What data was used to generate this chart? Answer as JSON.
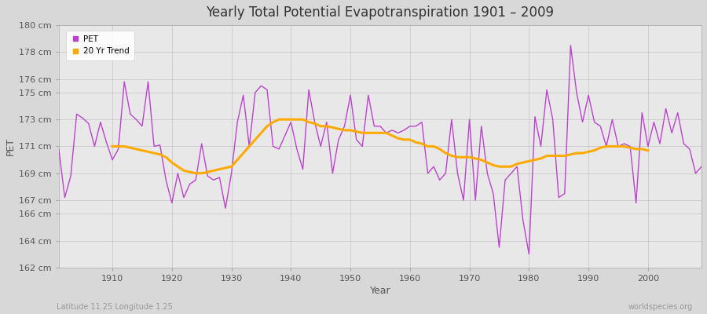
{
  "title": "Yearly Total Potential Evapotranspiration 1901 – 2009",
  "xlabel": "Year",
  "ylabel": "PET",
  "subtitle": "Latitude 11.25 Longitude 1.25",
  "watermark": "worldspecies.org",
  "pet_color": "#bb44cc",
  "trend_color": "#ffaa00",
  "fig_bg_color": "#d8d8d8",
  "plot_bg_color": "#e8e8e8",
  "ylim": [
    162,
    180
  ],
  "yticks": [
    162,
    164,
    166,
    167,
    169,
    171,
    173,
    175,
    176,
    178,
    180
  ],
  "xlim": [
    1901,
    2009
  ],
  "xticks": [
    1910,
    1920,
    1930,
    1940,
    1950,
    1960,
    1970,
    1980,
    1990,
    2000
  ],
  "years": [
    1901,
    1902,
    1903,
    1904,
    1905,
    1906,
    1907,
    1908,
    1909,
    1910,
    1911,
    1912,
    1913,
    1914,
    1915,
    1916,
    1917,
    1918,
    1919,
    1920,
    1921,
    1922,
    1923,
    1924,
    1925,
    1926,
    1927,
    1928,
    1929,
    1930,
    1931,
    1932,
    1933,
    1934,
    1935,
    1936,
    1937,
    1938,
    1939,
    1940,
    1941,
    1942,
    1943,
    1944,
    1945,
    1946,
    1947,
    1948,
    1949,
    1950,
    1951,
    1952,
    1953,
    1954,
    1955,
    1956,
    1957,
    1958,
    1959,
    1960,
    1961,
    1962,
    1963,
    1964,
    1965,
    1966,
    1967,
    1968,
    1969,
    1970,
    1971,
    1972,
    1973,
    1974,
    1975,
    1976,
    1977,
    1978,
    1979,
    1980,
    1981,
    1982,
    1983,
    1984,
    1985,
    1986,
    1987,
    1988,
    1989,
    1990,
    1991,
    1992,
    1993,
    1994,
    1995,
    1996,
    1997,
    1998,
    1999,
    2000,
    2001,
    2002,
    2003,
    2004,
    2005,
    2006,
    2007,
    2008,
    2009
  ],
  "pet_values": [
    170.8,
    167.2,
    168.8,
    173.4,
    173.1,
    172.7,
    171.0,
    172.8,
    171.3,
    170.0,
    170.8,
    175.8,
    173.4,
    173.0,
    172.5,
    175.8,
    171.0,
    171.1,
    168.5,
    166.8,
    169.0,
    167.2,
    168.2,
    168.5,
    171.2,
    168.8,
    168.5,
    168.7,
    166.4,
    169.0,
    172.8,
    174.8,
    171.0,
    175.0,
    175.5,
    175.2,
    171.0,
    170.8,
    171.8,
    172.8,
    170.8,
    169.3,
    175.2,
    172.8,
    171.0,
    172.8,
    169.0,
    171.5,
    172.5,
    174.8,
    171.5,
    171.0,
    174.8,
    172.5,
    172.5,
    172.0,
    172.2,
    172.0,
    172.2,
    172.5,
    172.5,
    172.8,
    169.0,
    169.5,
    168.5,
    169.0,
    173.0,
    169.0,
    167.0,
    173.0,
    167.0,
    172.5,
    169.0,
    167.5,
    163.5,
    168.5,
    169.0,
    169.5,
    165.5,
    163.0,
    173.2,
    171.0,
    175.2,
    173.0,
    167.2,
    167.5,
    178.5,
    175.0,
    172.8,
    174.8,
    172.8,
    172.5,
    171.0,
    173.0,
    171.0,
    171.2,
    171.0,
    166.8,
    173.5,
    171.0,
    172.8,
    171.2,
    173.8,
    172.0,
    173.5,
    171.2,
    170.8,
    169.0,
    169.5
  ],
  "trend_values": [
    null,
    null,
    null,
    null,
    null,
    null,
    null,
    null,
    null,
    171.0,
    171.0,
    171.0,
    170.9,
    170.8,
    170.7,
    170.6,
    170.5,
    170.4,
    170.2,
    169.8,
    169.5,
    169.2,
    169.1,
    169.0,
    169.0,
    169.1,
    169.2,
    169.3,
    169.4,
    169.5,
    170.0,
    170.5,
    171.0,
    171.5,
    172.0,
    172.5,
    172.8,
    173.0,
    173.0,
    173.0,
    173.0,
    173.0,
    172.8,
    172.7,
    172.5,
    172.5,
    172.4,
    172.3,
    172.2,
    172.2,
    172.1,
    172.0,
    172.0,
    172.0,
    172.0,
    172.0,
    171.8,
    171.6,
    171.5,
    171.5,
    171.3,
    171.2,
    171.0,
    171.0,
    170.8,
    170.5,
    170.3,
    170.2,
    170.2,
    170.2,
    170.1,
    170.0,
    169.8,
    169.6,
    169.5,
    169.5,
    169.5,
    169.7,
    169.8,
    169.9,
    170.0,
    170.1,
    170.3,
    170.3,
    170.3,
    170.3,
    170.4,
    170.5,
    170.5,
    170.6,
    170.7,
    170.9,
    171.0,
    171.0,
    171.0,
    171.0,
    170.9,
    170.8,
    170.8,
    170.7,
    null,
    null,
    null,
    null,
    null,
    null,
    null,
    null,
    null
  ]
}
